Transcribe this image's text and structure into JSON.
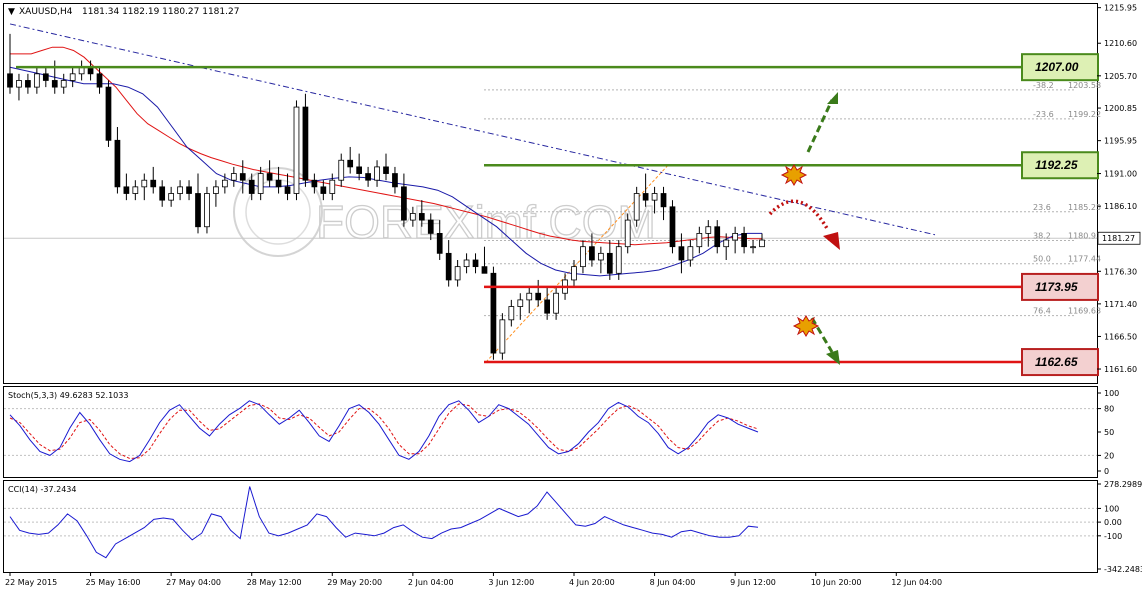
{
  "chart_data": {
    "type": "candlestick",
    "symbol_header": "XAUUSD,H4",
    "ohlc_header": "1181.34 1182.19 1180.27 1181.27",
    "price_axis": {
      "ylim": [
        1159.5,
        1216.5
      ],
      "ticks": [
        "1215.95",
        "1210.60",
        "1205.70",
        "1200.85",
        "1195.95",
        "1191.00",
        "1186.10",
        "1181.20",
        "1176.30",
        "1171.40",
        "1166.50",
        "1161.60"
      ],
      "tick_values": [
        1215.95,
        1210.6,
        1205.7,
        1200.85,
        1195.95,
        1191.0,
        1186.1,
        1181.2,
        1176.3,
        1171.4,
        1166.5,
        1161.6
      ],
      "current_price": "1181.27",
      "current_value": 1181.27
    },
    "time_axis": {
      "labels": [
        "22 May 2015",
        "25 May 16:00",
        "27 May 04:00",
        "28 May 12:00",
        "29 May 20:00",
        "2 Jun 04:00",
        "3 Jun 12:00",
        "4 Jun 20:00",
        "8 Jun 04:00",
        "9 Jun 12:00",
        "10 Jun 20:00",
        "12 Jun 04:00"
      ],
      "label_bar_index": [
        0,
        9,
        18,
        27,
        36,
        45,
        54,
        63,
        72,
        81,
        90,
        99
      ]
    },
    "candles": [
      [
        1206,
        1212,
        1203,
        1204
      ],
      [
        1204,
        1206,
        1202,
        1205
      ],
      [
        1205,
        1206,
        1203,
        1204
      ],
      [
        1204,
        1207,
        1203,
        1206
      ],
      [
        1206,
        1207,
        1204,
        1205
      ],
      [
        1205,
        1208,
        1203,
        1204
      ],
      [
        1204,
        1206,
        1203,
        1205
      ],
      [
        1205,
        1207,
        1204,
        1206
      ],
      [
        1206,
        1208,
        1205,
        1207
      ],
      [
        1207,
        1208,
        1205,
        1206
      ],
      [
        1206,
        1207,
        1203,
        1204
      ],
      [
        1204,
        1205,
        1195,
        1196
      ],
      [
        1196,
        1198,
        1188,
        1189
      ],
      [
        1189,
        1191,
        1187,
        1188
      ],
      [
        1188,
        1190,
        1187,
        1189
      ],
      [
        1189,
        1191,
        1187,
        1190
      ],
      [
        1190,
        1192,
        1188,
        1189
      ],
      [
        1189,
        1190,
        1186,
        1187
      ],
      [
        1187,
        1189,
        1186,
        1188
      ],
      [
        1188,
        1190,
        1187,
        1189
      ],
      [
        1189,
        1190,
        1187,
        1188
      ],
      [
        1188,
        1191,
        1182,
        1183
      ],
      [
        1183,
        1189,
        1182,
        1188
      ],
      [
        1188,
        1190,
        1186,
        1189
      ],
      [
        1189,
        1191,
        1188,
        1190
      ],
      [
        1190,
        1192,
        1189,
        1191
      ],
      [
        1191,
        1193,
        1188,
        1190
      ],
      [
        1190,
        1191,
        1187,
        1188
      ],
      [
        1188,
        1192,
        1187,
        1191
      ],
      [
        1191,
        1193,
        1189,
        1190
      ],
      [
        1190,
        1192,
        1188,
        1189
      ],
      [
        1189,
        1191,
        1187,
        1188
      ],
      [
        1188,
        1202,
        1187,
        1201
      ],
      [
        1201,
        1203,
        1189,
        1190
      ],
      [
        1190,
        1191,
        1188,
        1189
      ],
      [
        1189,
        1190,
        1187,
        1188
      ],
      [
        1188,
        1191,
        1187,
        1190
      ],
      [
        1190,
        1194,
        1189,
        1193
      ],
      [
        1193,
        1195,
        1191,
        1192
      ],
      [
        1192,
        1194,
        1190,
        1191
      ],
      [
        1191,
        1192,
        1189,
        1190
      ],
      [
        1190,
        1193,
        1189,
        1192
      ],
      [
        1192,
        1194,
        1190,
        1191
      ],
      [
        1191,
        1192,
        1188,
        1189
      ],
      [
        1189,
        1191,
        1183,
        1184
      ],
      [
        1184,
        1186,
        1183,
        1185
      ],
      [
        1185,
        1187,
        1183,
        1184
      ],
      [
        1184,
        1185,
        1181,
        1182
      ],
      [
        1182,
        1184,
        1178,
        1179
      ],
      [
        1179,
        1181,
        1174,
        1175
      ],
      [
        1175,
        1178,
        1174,
        1177
      ],
      [
        1177,
        1179,
        1176,
        1178
      ],
      [
        1178,
        1179,
        1176,
        1177
      ],
      [
        1177,
        1180,
        1176,
        1176
      ],
      [
        1176,
        1177,
        1163,
        1164
      ],
      [
        1164,
        1170,
        1163,
        1169
      ],
      [
        1169,
        1172,
        1168,
        1171
      ],
      [
        1171,
        1173,
        1169,
        1172
      ],
      [
        1172,
        1174,
        1170,
        1173
      ],
      [
        1173,
        1175,
        1171,
        1172
      ],
      [
        1172,
        1174,
        1169,
        1170
      ],
      [
        1170,
        1174,
        1169,
        1173
      ],
      [
        1173,
        1176,
        1172,
        1175
      ],
      [
        1175,
        1178,
        1174,
        1177
      ],
      [
        1177,
        1181,
        1176,
        1180
      ],
      [
        1180,
        1182,
        1177,
        1178
      ],
      [
        1178,
        1180,
        1176,
        1179
      ],
      [
        1179,
        1181,
        1175,
        1176
      ],
      [
        1176,
        1181,
        1175,
        1180
      ],
      [
        1180,
        1185,
        1179,
        1184
      ],
      [
        1184,
        1189,
        1183,
        1188
      ],
      [
        1188,
        1191,
        1186,
        1187
      ],
      [
        1187,
        1189,
        1185,
        1188
      ],
      [
        1188,
        1189,
        1184,
        1186
      ],
      [
        1186,
        1187,
        1179,
        1180
      ],
      [
        1180,
        1182,
        1176,
        1178
      ],
      [
        1178,
        1181,
        1177,
        1180
      ],
      [
        1180,
        1183,
        1179,
        1182
      ],
      [
        1182,
        1184,
        1180,
        1183
      ],
      [
        1183,
        1184,
        1179,
        1180
      ],
      [
        1180,
        1182,
        1178,
        1181
      ],
      [
        1181,
        1183,
        1179,
        1182
      ],
      [
        1182,
        1183,
        1179,
        1180
      ],
      [
        1180,
        1181,
        1179,
        1180
      ],
      [
        1180,
        1182,
        1180,
        1181
      ]
    ],
    "ema_red": [
      1209,
      1209,
      1209,
      1209.5,
      1210,
      1210,
      1209.5,
      1208.5,
      1207,
      1205.5,
      1204,
      1202,
      1200,
      1198.5,
      1197.5,
      1196.5,
      1195.5,
      1194.7,
      1194,
      1193.4,
      1192.9,
      1192.4,
      1192,
      1191.6,
      1191.3,
      1191,
      1190.7,
      1190.4,
      1190.1,
      1189.8,
      1189.5,
      1189.2,
      1188.9,
      1188.6,
      1188.3,
      1188,
      1187.7,
      1187.4,
      1187.1,
      1186.8,
      1186.5,
      1186.1,
      1185.7,
      1185.3,
      1184.9,
      1184.5,
      1184,
      1183.5,
      1183,
      1182.5,
      1182,
      1181.6,
      1181.3,
      1181,
      1180.8,
      1180.7,
      1180.6,
      1180.5,
      1180.4,
      1180.3,
      1180.4,
      1180.5,
      1180.6,
      1180.8,
      1181,
      1181.2,
      1181.4,
      1181.5,
      1181.4,
      1181.3,
      1181.2,
      1181.2
    ],
    "sma_blue": [
      1207,
      1206.5,
      1206,
      1205.5,
      1205,
      1204.5,
      1204.5,
      1204.5,
      1204,
      1203,
      1201,
      1198,
      1195,
      1193,
      1191,
      1190,
      1189.5,
      1189,
      1189,
      1189.2,
      1189.6,
      1190,
      1190.3,
      1190.5,
      1190.4,
      1190,
      1189.6,
      1189.3,
      1189,
      1188.5,
      1187.5,
      1186,
      1184.5,
      1183,
      1181,
      1179,
      1177.5,
      1176.5,
      1176,
      1175.8,
      1175.6,
      1175.8,
      1176,
      1176.2,
      1176.5,
      1177.2,
      1178,
      1179,
      1180.5,
      1181.6,
      1182,
      1182
    ],
    "trend_line": {
      "from_value": 1213.5,
      "to_value": 1181.8,
      "color": "#2828a0"
    },
    "fib_retracement": {
      "levels": [
        {
          "ratio_label": "-38.2",
          "price": "1203.58",
          "value": 1203.58
        },
        {
          "ratio_label": "-23.6",
          "price": "1199.22",
          "value": 1199.22
        },
        {
          "ratio_label": "23.6",
          "price": "1185.25",
          "value": 1185.25
        },
        {
          "ratio_label": "38.2",
          "price": "1180.93",
          "value": 1180.93
        },
        {
          "ratio_label": "50.0",
          "price": "1177.44",
          "value": 1177.44
        },
        {
          "ratio_label": "76.4",
          "price": "1169.63",
          "value": 1169.63
        }
      ]
    },
    "levels": [
      {
        "label": "1207.00",
        "value": 1207.0,
        "kind": "resistance",
        "line_color": "#4a8a1c",
        "box_fill": "#ddf0b4",
        "box_border": "#4a8a1c"
      },
      {
        "label": "1192.25",
        "value": 1192.25,
        "kind": "resistance",
        "line_color": "#4a8a1c",
        "box_fill": "#ddf0b4",
        "box_border": "#4a8a1c"
      },
      {
        "label": "1173.95",
        "value": 1173.95,
        "kind": "support",
        "line_color": "#e01414",
        "box_fill": "#f3d0d0",
        "box_border": "#b82020"
      },
      {
        "label": "1162.65",
        "value": 1162.65,
        "kind": "support",
        "line_color": "#e01414",
        "box_fill": "#f3d0d0",
        "box_border": "#b82020"
      }
    ],
    "stochastic": {
      "header": "Stoch(5,3,3) 49.6283 52.1033",
      "ylim": [
        0,
        100
      ],
      "ticks": [
        "100",
        "80",
        "50",
        "20",
        "0"
      ],
      "tick_values": [
        100,
        80,
        50,
        20,
        0
      ],
      "main": [
        72,
        58,
        40,
        25,
        20,
        30,
        55,
        75,
        60,
        40,
        22,
        15,
        12,
        20,
        40,
        62,
        78,
        85,
        70,
        55,
        45,
        60,
        72,
        80,
        90,
        85,
        72,
        60,
        68,
        78,
        62,
        45,
        38,
        58,
        80,
        85,
        75,
        60,
        40,
        20,
        15,
        25,
        45,
        70,
        85,
        90,
        78,
        62,
        70,
        85,
        80,
        70,
        60,
        45,
        30,
        22,
        25,
        35,
        50,
        62,
        80,
        88,
        82,
        70,
        62,
        48,
        30,
        22,
        30,
        45,
        62,
        72,
        68,
        60,
        55,
        50
      ],
      "signal": [
        68,
        62,
        48,
        34,
        26,
        28,
        42,
        62,
        66,
        52,
        34,
        22,
        16,
        17,
        28,
        48,
        66,
        78,
        78,
        64,
        52,
        54,
        64,
        74,
        84,
        86,
        80,
        68,
        66,
        72,
        68,
        56,
        45,
        50,
        66,
        80,
        80,
        70,
        54,
        34,
        22,
        22,
        34,
        54,
        74,
        86,
        84,
        72,
        70,
        78,
        80,
        76,
        66,
        54,
        40,
        28,
        25,
        30,
        42,
        54,
        68,
        80,
        84,
        78,
        68,
        58,
        42,
        30,
        28,
        38,
        52,
        64,
        68,
        64,
        58,
        54
      ],
      "colors": {
        "main": "#1a1ad0",
        "signal": "#e01414"
      }
    },
    "cci": {
      "header": "CCI(14) -37.2434",
      "ylim": [
        -342.2483,
        278.2989
      ],
      "ticks": [
        "278.2989",
        "100",
        "0.00",
        "-100",
        "-342.2483"
      ],
      "tick_values": [
        278.2989,
        100,
        0,
        -100,
        -342.2483
      ],
      "values": [
        40,
        -60,
        -80,
        -90,
        -80,
        -20,
        60,
        10,
        -100,
        -220,
        -260,
        -160,
        -120,
        -80,
        -40,
        20,
        30,
        20,
        -60,
        -130,
        -80,
        60,
        40,
        -60,
        -120,
        260,
        40,
        -80,
        -100,
        -80,
        -50,
        -20,
        60,
        40,
        -40,
        -110,
        -80,
        -90,
        -100,
        -80,
        -40,
        -20,
        -70,
        -110,
        -120,
        -80,
        -50,
        -40,
        -10,
        20,
        60,
        100,
        70,
        40,
        60,
        120,
        220,
        140,
        60,
        -20,
        -30,
        -10,
        40,
        10,
        -20,
        -40,
        -60,
        -80,
        -90,
        -110,
        -70,
        -60,
        -80,
        -100,
        -110,
        -110,
        -100,
        -30,
        -37
      ],
      "color": "#1a1ad0"
    },
    "watermark": "FOREXimf.COM"
  }
}
